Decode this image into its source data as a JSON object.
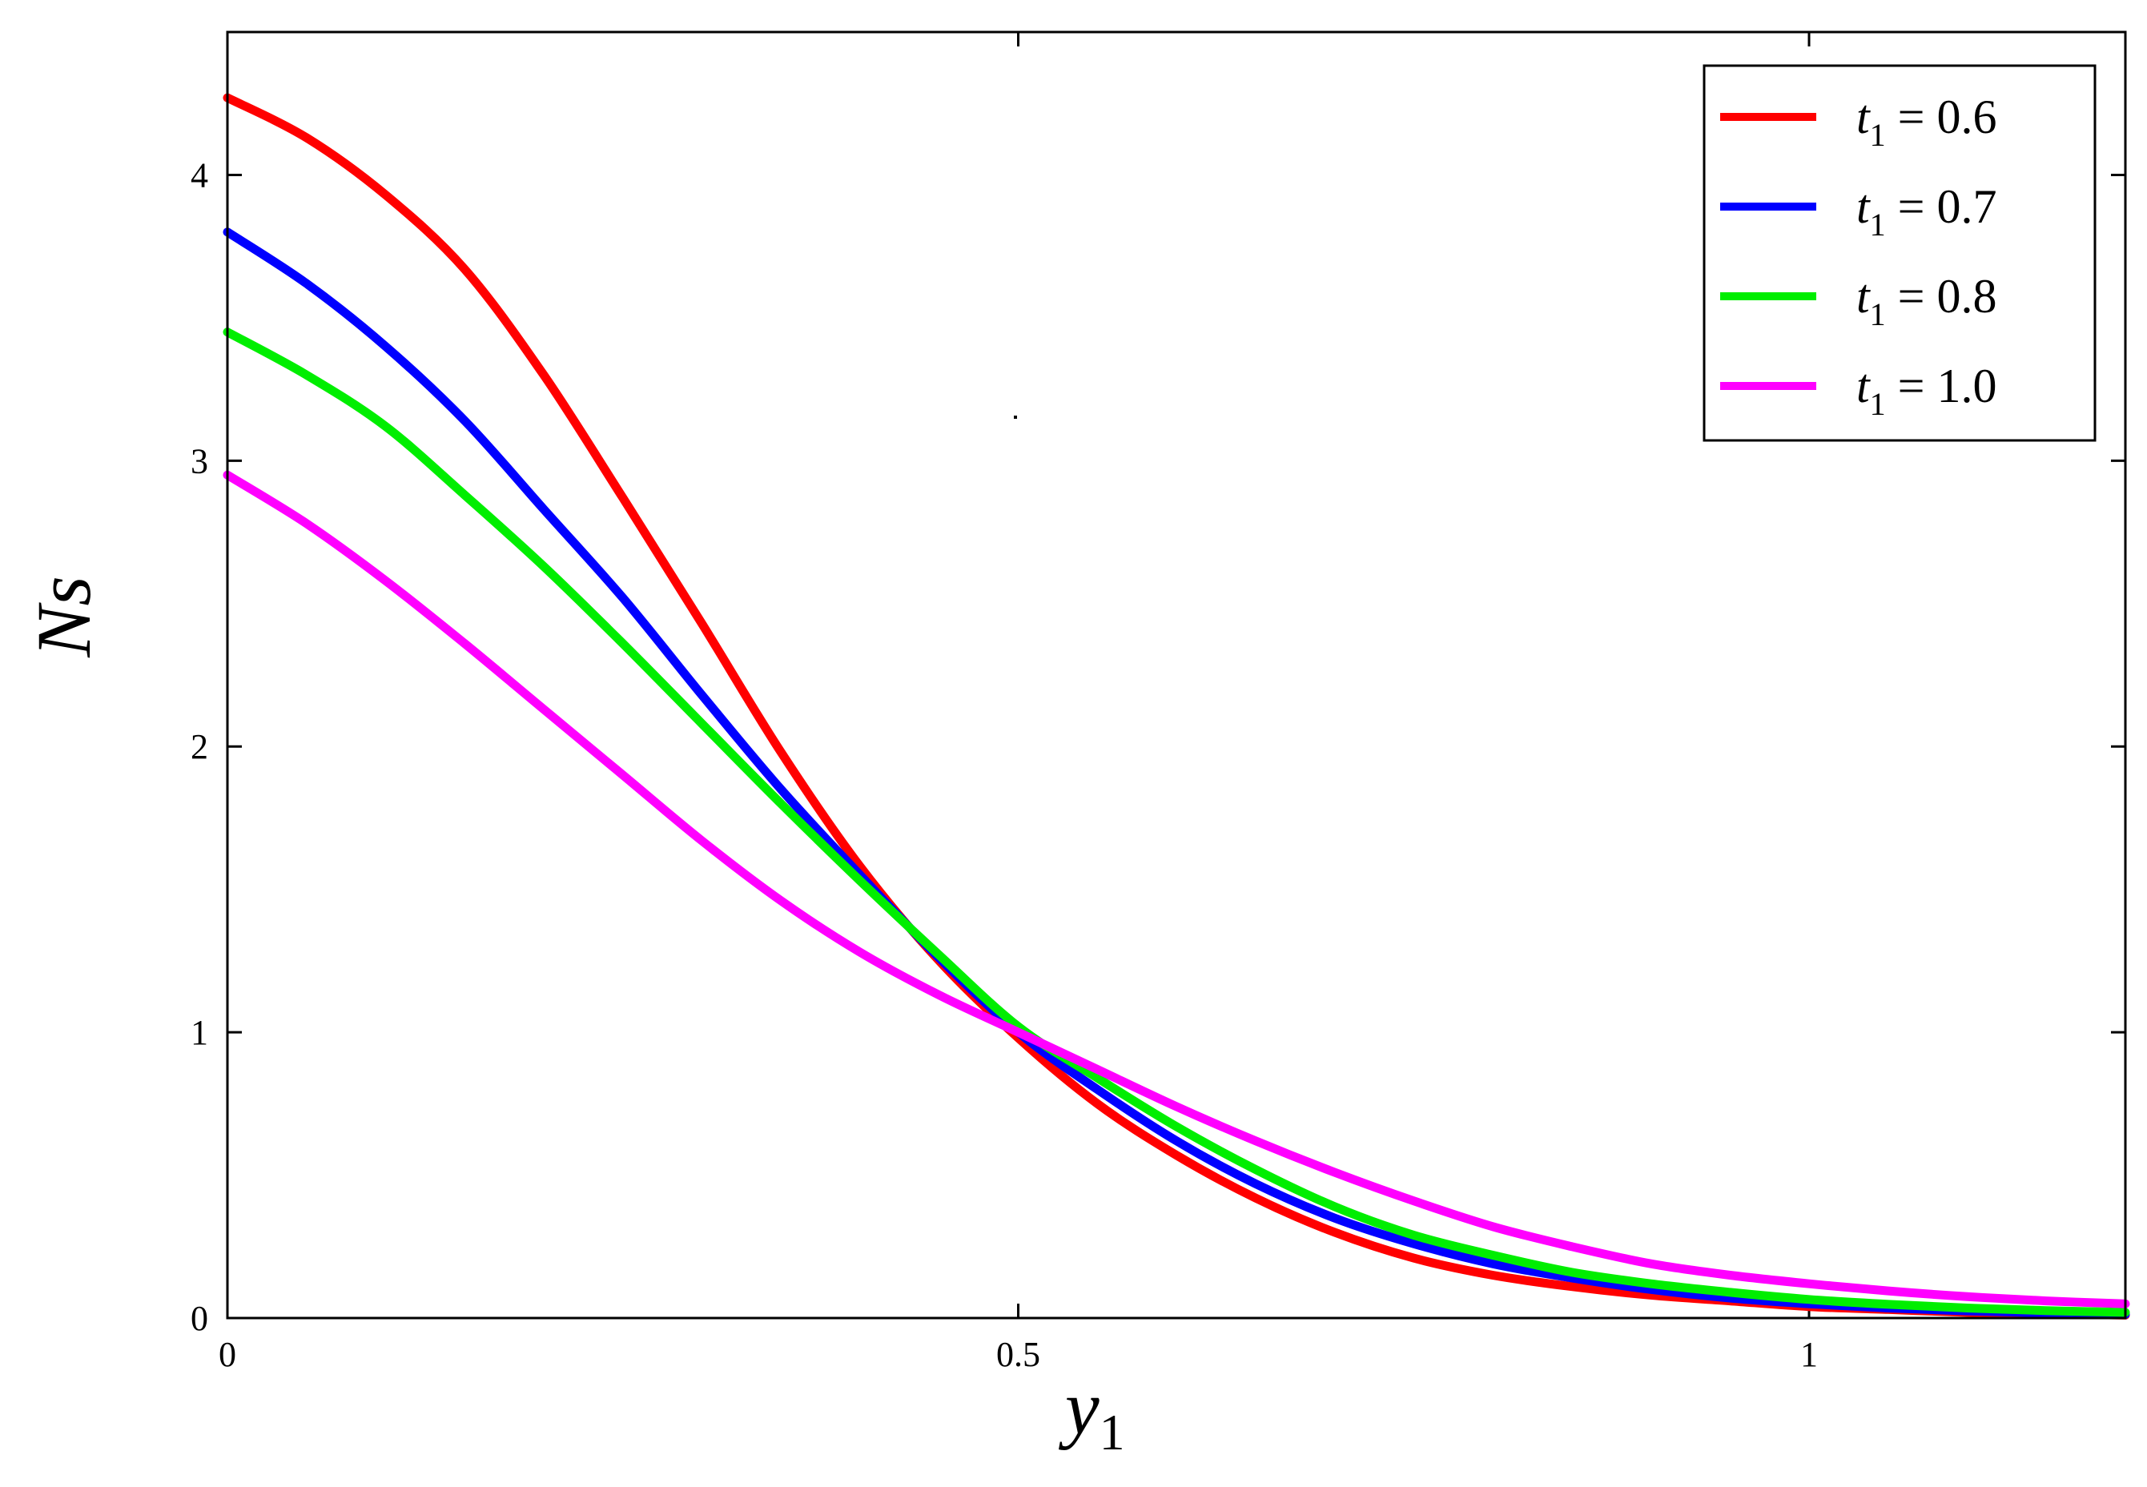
{
  "chart_data": {
    "type": "line",
    "title": "",
    "xlabel": {
      "main": "y",
      "sub": "1"
    },
    "ylabel": "Ns",
    "xlim": [
      0,
      1.2
    ],
    "ylim": [
      0,
      4.5
    ],
    "xticks": [
      {
        "value": 0,
        "label": "0"
      },
      {
        "value": 0.5,
        "label": "0.5"
      },
      {
        "value": 1,
        "label": "1"
      }
    ],
    "yticks": [
      {
        "value": 0,
        "label": "0"
      },
      {
        "value": 1,
        "label": "1"
      },
      {
        "value": 2,
        "label": "2"
      },
      {
        "value": 3,
        "label": "3"
      },
      {
        "value": 4,
        "label": "4"
      }
    ],
    "grid": false,
    "legend_position": "top-right",
    "series": [
      {
        "name": "t1 = 0.6",
        "legend": {
          "var": "t",
          "sub": "1",
          "rest": " = 0.6"
        },
        "color": "#ff0000",
        "x": [
          0,
          0.05,
          0.1,
          0.15,
          0.2,
          0.25,
          0.3,
          0.35,
          0.4,
          0.45,
          0.5,
          0.55,
          0.6,
          0.65,
          0.7,
          0.75,
          0.8,
          0.85,
          0.9,
          0.95,
          1.0,
          1.05,
          1.1,
          1.15,
          1.2
        ],
        "y": [
          4.27,
          4.13,
          3.93,
          3.67,
          3.3,
          2.87,
          2.43,
          1.98,
          1.58,
          1.25,
          0.98,
          0.75,
          0.57,
          0.42,
          0.3,
          0.21,
          0.15,
          0.11,
          0.08,
          0.06,
          0.04,
          0.03,
          0.02,
          0.015,
          0.01
        ]
      },
      {
        "name": "t1 = 0.7",
        "legend": {
          "var": "t",
          "sub": "1",
          "rest": " = 0.7"
        },
        "color": "#0000ff",
        "x": [
          0,
          0.05,
          0.1,
          0.15,
          0.2,
          0.25,
          0.3,
          0.35,
          0.4,
          0.45,
          0.5,
          0.55,
          0.6,
          0.65,
          0.7,
          0.75,
          0.8,
          0.85,
          0.9,
          0.95,
          1.0,
          1.05,
          1.1,
          1.15,
          1.2
        ],
        "y": [
          3.8,
          3.62,
          3.4,
          3.14,
          2.83,
          2.52,
          2.18,
          1.85,
          1.55,
          1.26,
          1.0,
          0.8,
          0.62,
          0.47,
          0.35,
          0.26,
          0.19,
          0.14,
          0.1,
          0.07,
          0.05,
          0.035,
          0.025,
          0.018,
          0.013
        ]
      },
      {
        "name": "t1 = 0.8",
        "legend": {
          "var": "t",
          "sub": "1",
          "rest": " = 0.8"
        },
        "color": "#00ee00",
        "x": [
          0,
          0.05,
          0.1,
          0.15,
          0.2,
          0.25,
          0.3,
          0.35,
          0.4,
          0.45,
          0.5,
          0.55,
          0.6,
          0.65,
          0.7,
          0.75,
          0.8,
          0.85,
          0.9,
          0.95,
          1.0,
          1.05,
          1.1,
          1.15,
          1.2
        ],
        "y": [
          3.45,
          3.3,
          3.12,
          2.88,
          2.63,
          2.36,
          2.08,
          1.8,
          1.53,
          1.27,
          1.02,
          0.84,
          0.67,
          0.52,
          0.39,
          0.29,
          0.22,
          0.16,
          0.12,
          0.09,
          0.065,
          0.048,
          0.035,
          0.026,
          0.02
        ]
      },
      {
        "name": "t1 = 1.0",
        "legend": {
          "var": "t",
          "sub": "1",
          "rest": " = 1.0"
        },
        "color": "#ff00ff",
        "x": [
          0,
          0.05,
          0.1,
          0.15,
          0.2,
          0.25,
          0.3,
          0.35,
          0.4,
          0.45,
          0.5,
          0.55,
          0.6,
          0.65,
          0.7,
          0.75,
          0.8,
          0.85,
          0.9,
          0.95,
          1.0,
          1.05,
          1.1,
          1.15,
          1.2
        ],
        "y": [
          2.95,
          2.78,
          2.58,
          2.36,
          2.13,
          1.9,
          1.67,
          1.46,
          1.28,
          1.13,
          1.0,
          0.87,
          0.74,
          0.62,
          0.51,
          0.41,
          0.32,
          0.25,
          0.19,
          0.15,
          0.12,
          0.095,
          0.075,
          0.06,
          0.05
        ]
      }
    ]
  }
}
